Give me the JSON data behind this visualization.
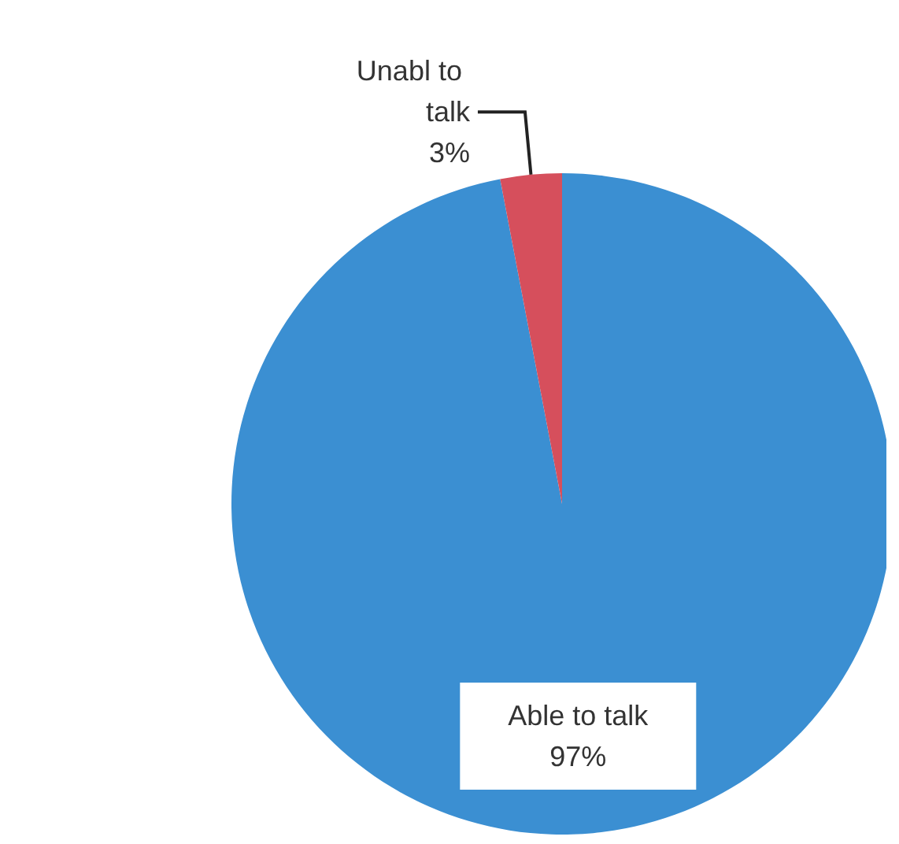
{
  "chart_data": {
    "type": "pie",
    "categories": [
      "Able to talk",
      "Unabl to talk"
    ],
    "values": [
      97,
      3
    ],
    "colors": [
      "#3b8fd2",
      "#d64f5c"
    ],
    "value_labels": [
      "97%",
      "3%"
    ]
  }
}
